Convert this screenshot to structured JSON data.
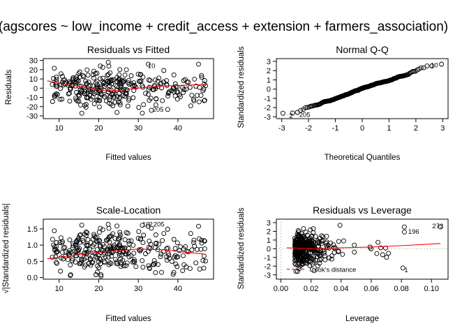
{
  "figure": {
    "title": "(agscores ~ low_income + credit_access + extension + farmers_association)",
    "colors": {
      "background": "#ffffff",
      "axis": "#000000",
      "smooth": "#ff0000",
      "reference": "#999999"
    }
  },
  "chart_data": [
    {
      "type": "scatter",
      "title": "Residuals vs Fitted",
      "xlabel": "Fitted values",
      "ylabel": "Residuals",
      "xlim": [
        6,
        49
      ],
      "ylim": [
        -33,
        32
      ],
      "x_ticks": [
        10,
        20,
        30,
        40
      ],
      "y_ticks": [
        -30,
        -20,
        -10,
        0,
        10,
        20,
        30
      ],
      "reference_line": {
        "y": 0,
        "style": "dotted"
      },
      "smooth_line": [
        [
          7,
          8
        ],
        [
          12,
          4
        ],
        [
          18,
          0
        ],
        [
          22,
          -3
        ],
        [
          26,
          -2
        ],
        [
          30,
          0
        ],
        [
          35,
          2
        ],
        [
          40,
          3
        ],
        [
          47,
          4
        ]
      ],
      "annotations": [
        {
          "text": "10",
          "x": 32.4,
          "y": 24
        },
        {
          "text": "205",
          "x": 33.6,
          "y": -23
        }
      ]
    },
    {
      "type": "scatter",
      "title": "Normal Q-Q",
      "xlabel": "Theoretical Quantiles",
      "ylabel": "Standardized residuals",
      "xlim": [
        -3.2,
        3.2
      ],
      "ylim": [
        -3.2,
        3.3
      ],
      "x_ticks": [
        -3,
        -2,
        -1,
        0,
        1,
        2,
        3
      ],
      "y_ticks": [
        -3,
        -2,
        -1,
        0,
        1,
        2,
        3
      ],
      "reference_line": {
        "from": [
          -3.2,
          -3.2
        ],
        "to": [
          3.2,
          3.2
        ],
        "style": "dotted"
      },
      "annotations": [
        {
          "text": "10",
          "x": 2.55,
          "y": 2.6
        },
        {
          "text": "205",
          "x": -2.35,
          "y": -2.8
        },
        {
          "text": "2",
          "x": -2.72,
          "y": -2.9
        }
      ]
    },
    {
      "type": "scatter",
      "title": "Scale-Location",
      "xlabel": "Fitted values",
      "ylabel": "√|Standardized residuals|",
      "xlim": [
        6,
        49
      ],
      "ylim": [
        -0.05,
        1.8
      ],
      "x_ticks": [
        10,
        20,
        30,
        40
      ],
      "y_ticks": [
        0.0,
        0.5,
        1.0,
        1.5
      ],
      "y_tick_labels": [
        "0.0",
        "0.5",
        "1.0",
        "1.5"
      ],
      "smooth_line": [
        [
          7,
          0.58
        ],
        [
          15,
          0.7
        ],
        [
          22,
          0.8
        ],
        [
          30,
          0.88
        ],
        [
          36,
          0.86
        ],
        [
          42,
          0.78
        ],
        [
          47,
          0.72
        ]
      ],
      "annotations": [
        {
          "text": "10",
          "x": 31.0,
          "y": 1.64
        },
        {
          "text": "205",
          "x": 33.8,
          "y": 1.64
        },
        {
          "text": "2",
          "x": 32.7,
          "y": 1.64
        }
      ]
    },
    {
      "type": "scatter",
      "title": "Residuals vs Leverage",
      "xlabel": "Leverage",
      "ylabel": "Standardized residuals",
      "xlim": [
        -0.003,
        0.111
      ],
      "ylim": [
        -3.5,
        3.4
      ],
      "x_ticks": [
        0.0,
        0.02,
        0.04,
        0.06,
        0.08,
        0.1
      ],
      "x_tick_labels": [
        "0.00",
        "0.02",
        "0.04",
        "0.06",
        "0.08",
        "0.10"
      ],
      "y_ticks": [
        -3,
        -2,
        -1,
        0,
        1,
        2,
        3
      ],
      "reference_line": {
        "y": 0,
        "style": "dotted"
      },
      "smooth_line": [
        [
          0.004,
          0.1
        ],
        [
          0.02,
          0.0
        ],
        [
          0.04,
          0.1
        ],
        [
          0.06,
          0.2
        ],
        [
          0.08,
          0.35
        ],
        [
          0.106,
          0.6
        ]
      ],
      "cooks_distance_label": "Cook's distance",
      "annotations": [
        {
          "text": "273",
          "x": 0.1005,
          "y": 2.6
        },
        {
          "text": "196",
          "x": 0.0845,
          "y": 1.95
        },
        {
          "text": "1",
          "x": 0.082,
          "y": -2.45
        }
      ]
    }
  ]
}
